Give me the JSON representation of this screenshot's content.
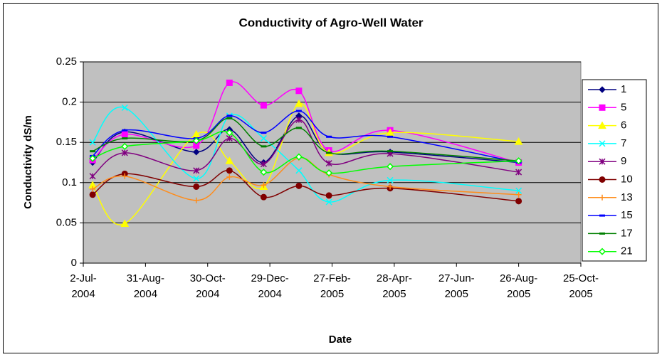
{
  "chart_data": {
    "type": "line",
    "title": "Conductivity of Agro-Well Water",
    "x_label": "Date",
    "y_label": "Conductivity dS/m",
    "x": [
      "2004-07-11",
      "2004-08-11",
      "2004-10-19",
      "2004-11-20",
      "2004-12-23",
      "2005-01-26",
      "2005-02-24",
      "2005-04-24",
      "2005-08-26"
    ],
    "xlim": [
      "2004-07-02",
      "2005-10-25"
    ],
    "xticks": [
      {
        "value": "2004-07-02",
        "label": "2-Jul-2004"
      },
      {
        "value": "2004-08-31",
        "label": "31-Aug-2004"
      },
      {
        "value": "2004-10-30",
        "label": "30-Oct-2004"
      },
      {
        "value": "2004-12-29",
        "label": "29-Dec-2004"
      },
      {
        "value": "2005-02-27",
        "label": "27-Feb-2005"
      },
      {
        "value": "2005-04-28",
        "label": "28-Apr-2005"
      },
      {
        "value": "2005-06-27",
        "label": "27-Jun-2005"
      },
      {
        "value": "2005-08-26",
        "label": "26-Aug-2005"
      },
      {
        "value": "2005-10-25",
        "label": "25-Oct-2005"
      }
    ],
    "ylim": [
      0,
      0.25
    ],
    "yticks": [
      0,
      0.05,
      0.1,
      0.15,
      0.2,
      0.25
    ],
    "grid": true,
    "smooth": true,
    "legend": "right",
    "series": [
      {
        "name": "1",
        "color": "#000080",
        "marker": "diamond",
        "values": [
          0.125,
          0.163,
          0.138,
          0.166,
          0.125,
          0.183,
          0.138,
          0.138,
          0.125
        ]
      },
      {
        "name": "5",
        "color": "#ff00ff",
        "marker": "square",
        "values": [
          0.128,
          0.16,
          0.146,
          0.224,
          0.196,
          0.214,
          0.14,
          0.165,
          0.125
        ]
      },
      {
        "name": "6",
        "color": "#ffff00",
        "marker": "triangle",
        "values": [
          0.097,
          0.049,
          0.16,
          0.127,
          0.095,
          0.198,
          0.137,
          0.162,
          0.151
        ]
      },
      {
        "name": "7",
        "color": "#00ffff",
        "marker": "x",
        "values": [
          0.15,
          0.193,
          0.105,
          0.183,
          0.155,
          0.115,
          0.076,
          0.103,
          0.09
        ]
      },
      {
        "name": "9",
        "color": "#800080",
        "marker": "star",
        "values": [
          0.108,
          0.137,
          0.115,
          0.155,
          0.123,
          0.178,
          0.124,
          0.136,
          0.113
        ]
      },
      {
        "name": "10",
        "color": "#800000",
        "marker": "circle",
        "values": [
          0.085,
          0.111,
          0.095,
          0.115,
          0.082,
          0.096,
          0.084,
          0.093,
          0.077
        ]
      },
      {
        "name": "13",
        "color": "#ff8c1a",
        "marker": "plus",
        "values": [
          0.092,
          0.108,
          0.078,
          0.107,
          0.097,
          0.131,
          0.11,
          0.095,
          0.085
        ]
      },
      {
        "name": "15",
        "color": "#0000ff",
        "marker": "dash",
        "values": [
          0.133,
          0.165,
          0.155,
          0.183,
          0.162,
          0.189,
          0.157,
          0.157,
          0.125
        ]
      },
      {
        "name": "17",
        "color": "#008000",
        "marker": "dash",
        "values": [
          0.139,
          0.155,
          0.152,
          0.18,
          0.145,
          0.168,
          0.137,
          0.139,
          0.127
        ]
      },
      {
        "name": "21",
        "color": "#00ff00",
        "marker": "open-diamond",
        "values": [
          0.13,
          0.145,
          0.152,
          0.162,
          0.113,
          0.132,
          0.112,
          0.12,
          0.127
        ]
      }
    ]
  }
}
